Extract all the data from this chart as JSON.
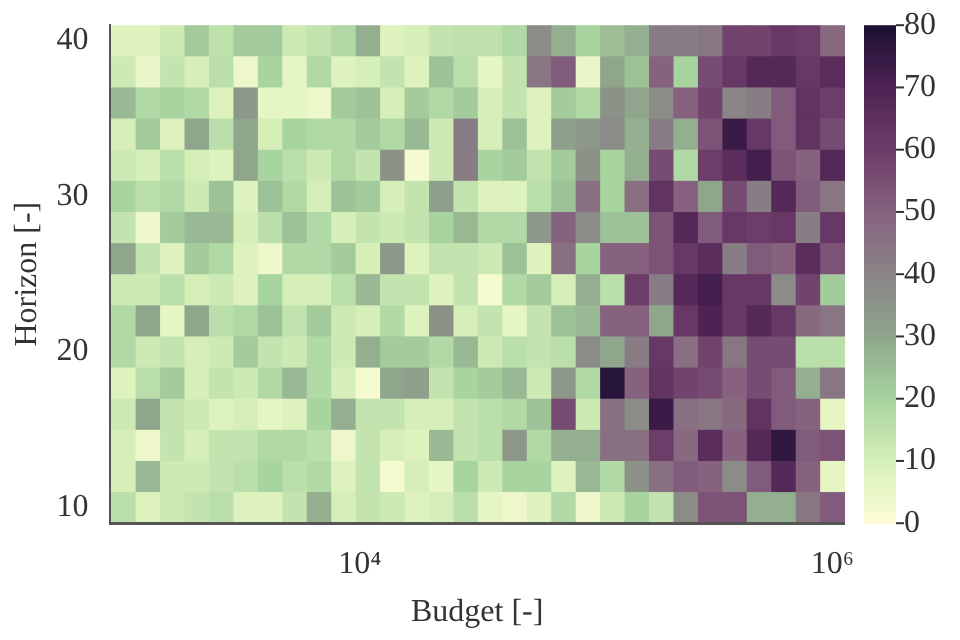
{
  "chart_data": {
    "type": "heatmap",
    "xlabel": "Budget [-]",
    "ylabel": "Horizon [-]",
    "log": "x",
    "xlim": [
      881,
      1120000
    ],
    "xticks": [
      {
        "value": 10000,
        "label": "10⁴"
      },
      {
        "value": 1000000,
        "label": "10⁶"
      }
    ],
    "x": [
      1000,
      1269,
      1610,
      2043,
      2593,
      3290,
      4175,
      5298,
      6723,
      8532,
      10826,
      13738,
      17433,
      22122,
      28072,
      35622,
      45204,
      57362,
      72790,
      92367,
      117210,
      148735,
      188739,
      239503,
      303920,
      385662,
      489390,
      621017,
      788046,
      1000000
    ],
    "clim": [
      0,
      80
    ],
    "cticks": [
      0,
      10,
      20,
      30,
      40,
      50,
      60,
      70,
      80
    ],
    "y_categories": [
      "40",
      null,
      null,
      null,
      null,
      "30",
      null,
      null,
      null,
      null,
      "20",
      null,
      null,
      null,
      null,
      "10"
    ],
    "cells": [
      [
        8,
        8,
        12,
        22,
        15,
        22,
        22,
        12,
        14,
        18,
        28,
        8,
        10,
        14,
        15,
        15,
        18,
        38,
        28,
        20,
        25,
        28,
        42,
        42,
        44,
        58,
        58,
        62,
        60,
        48
      ],
      [
        12,
        5,
        14,
        10,
        16,
        4,
        20,
        6,
        18,
        8,
        10,
        14,
        8,
        24,
        16,
        6,
        14,
        44,
        52,
        5,
        30,
        24,
        50,
        20,
        56,
        62,
        68,
        68,
        62,
        66
      ],
      [
        26,
        18,
        20,
        18,
        8,
        34,
        6,
        6,
        4,
        22,
        24,
        10,
        22,
        18,
        22,
        10,
        14,
        8,
        22,
        18,
        36,
        30,
        38,
        50,
        58,
        40,
        42,
        52,
        64,
        60
      ],
      [
        10,
        22,
        8,
        30,
        16,
        30,
        10,
        20,
        18,
        18,
        22,
        18,
        26,
        12,
        42,
        10,
        24,
        8,
        32,
        34,
        38,
        28,
        42,
        28,
        54,
        74,
        62,
        52,
        64,
        56
      ],
      [
        12,
        10,
        16,
        10,
        8,
        30,
        20,
        16,
        12,
        18,
        14,
        36,
        2,
        12,
        42,
        20,
        22,
        14,
        22,
        36,
        20,
        28,
        56,
        18,
        60,
        66,
        72,
        54,
        50,
        68
      ],
      [
        20,
        16,
        18,
        12,
        24,
        8,
        24,
        18,
        10,
        24,
        22,
        10,
        14,
        32,
        14,
        8,
        8,
        16,
        24,
        46,
        20,
        46,
        64,
        50,
        30,
        56,
        42,
        68,
        52,
        44
      ],
      [
        14,
        4,
        22,
        26,
        26,
        10,
        16,
        24,
        18,
        10,
        14,
        12,
        14,
        20,
        26,
        18,
        18,
        34,
        50,
        38,
        24,
        24,
        54,
        68,
        52,
        62,
        60,
        62,
        42,
        62
      ],
      [
        30,
        14,
        8,
        22,
        18,
        8,
        4,
        18,
        18,
        22,
        10,
        34,
        8,
        14,
        14,
        12,
        24,
        8,
        46,
        20,
        50,
        50,
        54,
        62,
        66,
        42,
        52,
        50,
        66,
        54
      ],
      [
        12,
        12,
        16,
        10,
        12,
        8,
        20,
        10,
        10,
        16,
        26,
        14,
        14,
        8,
        14,
        2,
        18,
        22,
        10,
        28,
        16,
        60,
        42,
        68,
        72,
        62,
        62,
        38,
        58,
        22
      ],
      [
        18,
        30,
        6,
        30,
        16,
        18,
        24,
        14,
        22,
        12,
        10,
        18,
        8,
        36,
        10,
        14,
        6,
        14,
        24,
        26,
        50,
        50,
        30,
        62,
        70,
        62,
        68,
        62,
        48,
        44
      ],
      [
        18,
        12,
        14,
        10,
        12,
        22,
        14,
        12,
        18,
        12,
        28,
        22,
        22,
        18,
        26,
        12,
        16,
        14,
        16,
        38,
        30,
        42,
        62,
        46,
        58,
        44,
        56,
        56,
        16,
        16
      ],
      [
        8,
        16,
        22,
        10,
        14,
        12,
        18,
        26,
        18,
        10,
        2,
        30,
        32,
        14,
        20,
        22,
        26,
        12,
        34,
        18,
        78,
        50,
        64,
        58,
        56,
        50,
        56,
        52,
        28,
        44
      ],
      [
        12,
        30,
        14,
        12,
        8,
        10,
        6,
        8,
        20,
        28,
        14,
        14,
        10,
        10,
        14,
        16,
        18,
        24,
        56,
        12,
        46,
        38,
        74,
        46,
        44,
        48,
        64,
        52,
        50,
        6
      ],
      [
        10,
        4,
        14,
        10,
        14,
        14,
        18,
        18,
        16,
        4,
        14,
        10,
        8,
        26,
        14,
        16,
        34,
        18,
        28,
        28,
        46,
        46,
        60,
        48,
        66,
        50,
        68,
        76,
        52,
        54
      ],
      [
        10,
        26,
        12,
        12,
        14,
        16,
        20,
        16,
        18,
        8,
        14,
        2,
        10,
        6,
        20,
        12,
        20,
        20,
        8,
        26,
        18,
        36,
        46,
        52,
        50,
        38,
        52,
        68,
        50,
        6
      ],
      [
        16,
        8,
        12,
        14,
        16,
        8,
        8,
        14,
        28,
        10,
        14,
        12,
        8,
        10,
        16,
        6,
        4,
        8,
        18,
        4,
        12,
        20,
        14,
        38,
        54,
        54,
        28,
        28,
        44,
        52
      ]
    ]
  }
}
